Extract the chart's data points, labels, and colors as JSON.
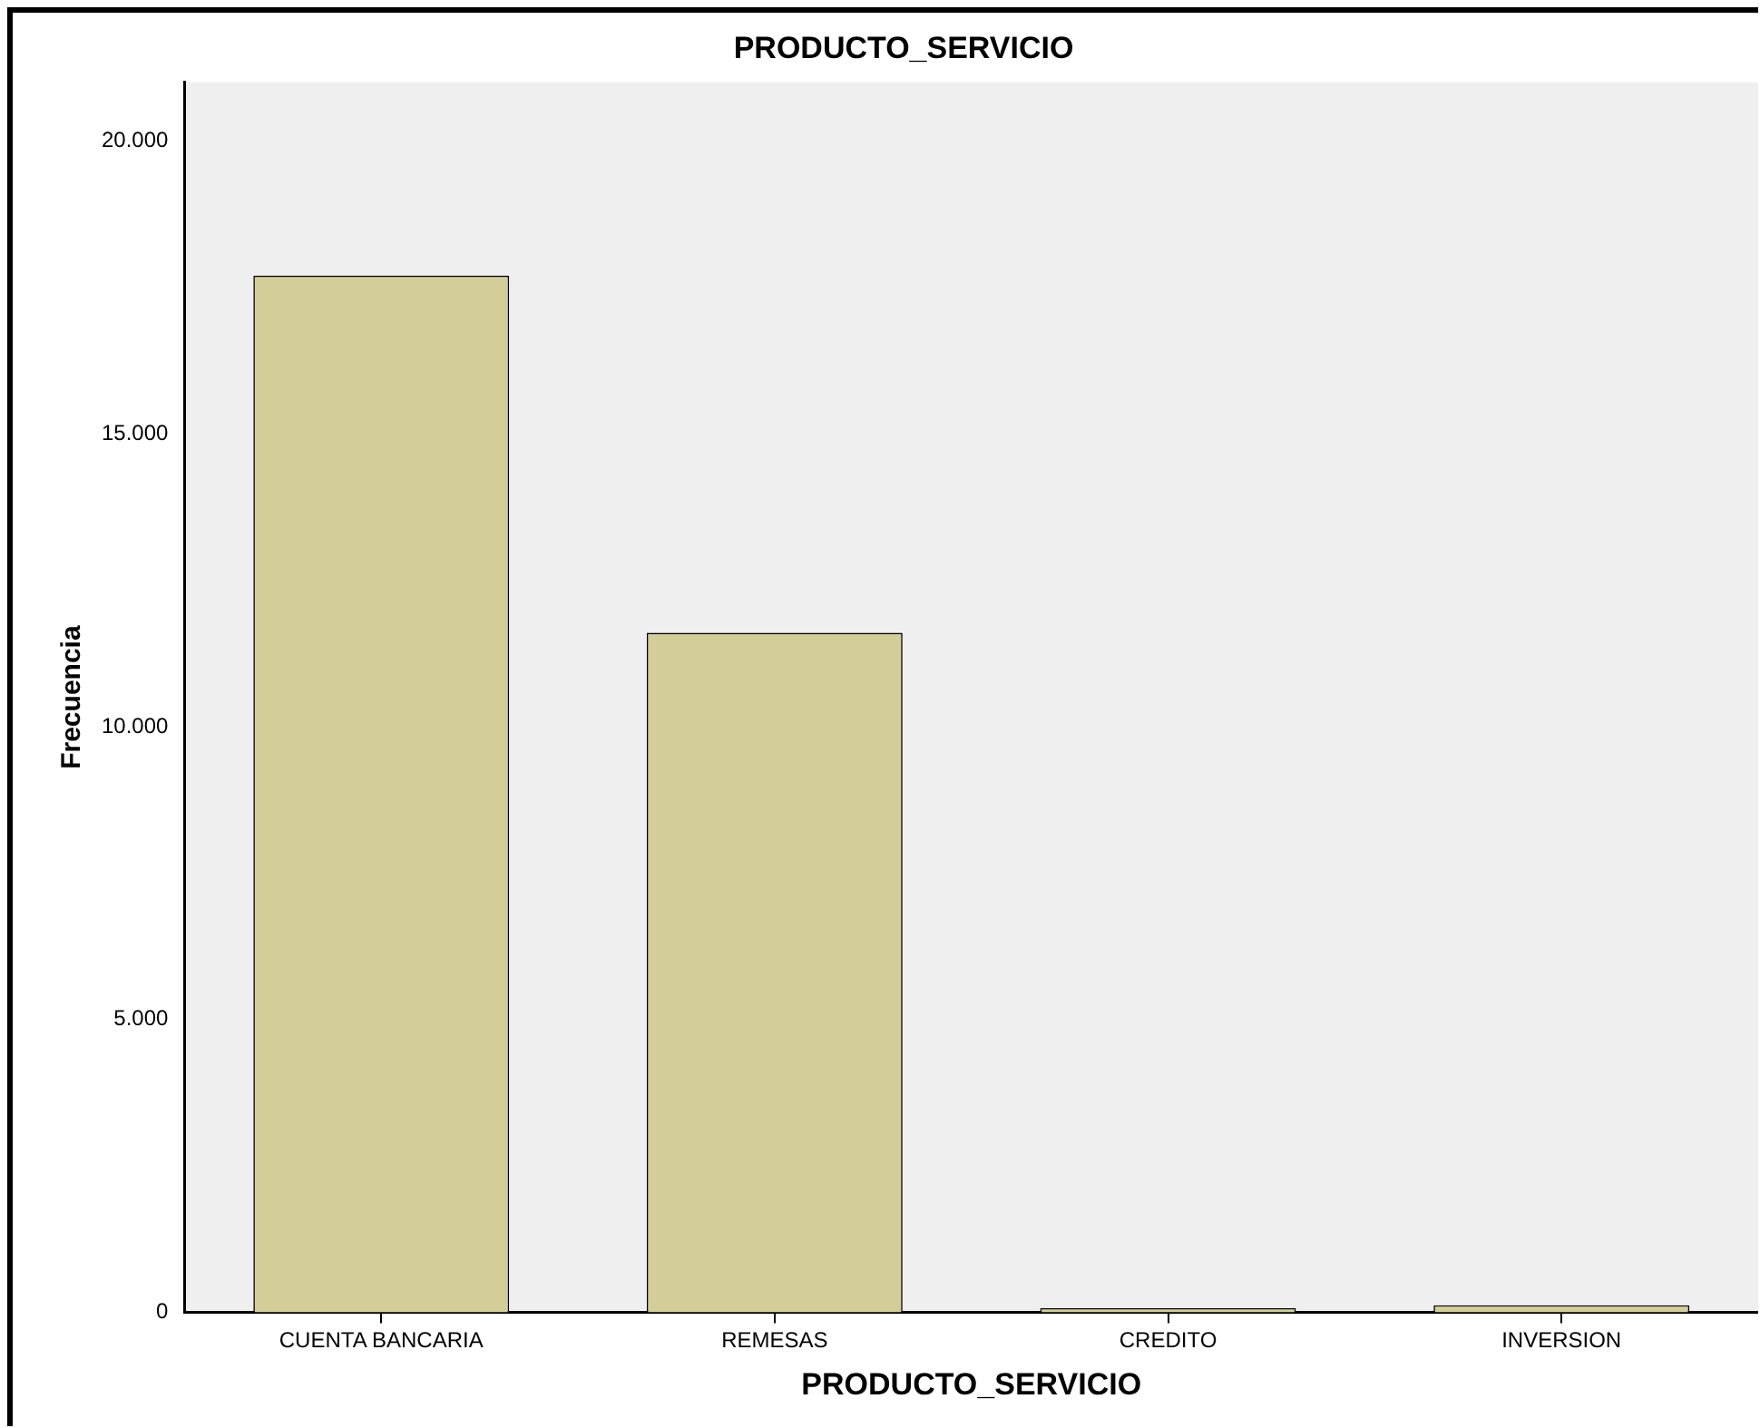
{
  "chart_data": {
    "type": "bar",
    "title": "PRODUCTO_SERVICIO",
    "xlabel": "PRODUCTO_SERVICIO",
    "ylabel": "Frecuencia",
    "categories": [
      "CUENTA BANCARIA",
      "REMESAS",
      "CREDITO",
      "INVERSION"
    ],
    "values": [
      17700,
      11600,
      70,
      120
    ],
    "color": "#d3ce97",
    "ylim": [
      0,
      21000
    ],
    "yticks": [
      {
        "value": 0,
        "label": "0"
      },
      {
        "value": 5000,
        "label": "5.000"
      },
      {
        "value": 10000,
        "label": "10.000"
      },
      {
        "value": 15000,
        "label": "15.000"
      },
      {
        "value": 20000,
        "label": "20.000"
      }
    ],
    "grid": false,
    "legend": false
  }
}
